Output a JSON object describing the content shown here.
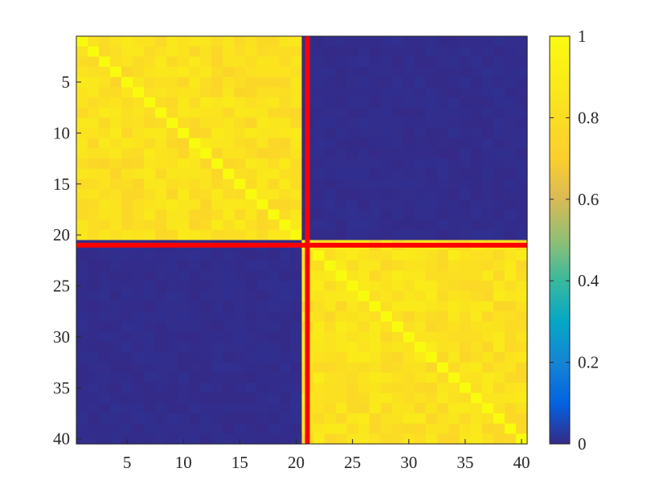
{
  "chart_data": {
    "type": "heatmap",
    "title": "",
    "xlabel": "",
    "ylabel": "",
    "n": 40,
    "x_ticks": [
      5,
      10,
      15,
      20,
      25,
      30,
      35,
      40
    ],
    "y_ticks": [
      5,
      10,
      15,
      20,
      25,
      30,
      35,
      40
    ],
    "clim": [
      0,
      1
    ],
    "colorbar_ticks": [
      "0",
      "0.2",
      "0.4",
      "0.6",
      "0.8",
      "1"
    ],
    "colorbar_values": [
      0,
      0.2,
      0.4,
      0.6,
      0.8,
      1
    ],
    "colormap": "parula",
    "block_boundaries": [
      20.5
    ],
    "boundary_color": "#ff0000",
    "blocks": [
      {
        "rows": [
          1,
          20
        ],
        "cols": [
          1,
          20
        ],
        "mean_value": 0.82,
        "diagonal": 1.0
      },
      {
        "rows": [
          21,
          40
        ],
        "cols": [
          21,
          40
        ],
        "mean_value": 0.83,
        "diagonal": 1.0
      },
      {
        "rows": [
          1,
          20
        ],
        "cols": [
          21,
          40
        ],
        "mean_value": 0.0
      },
      {
        "rows": [
          21,
          40
        ],
        "cols": [
          1,
          20
        ],
        "mean_value": 0.0
      }
    ]
  }
}
